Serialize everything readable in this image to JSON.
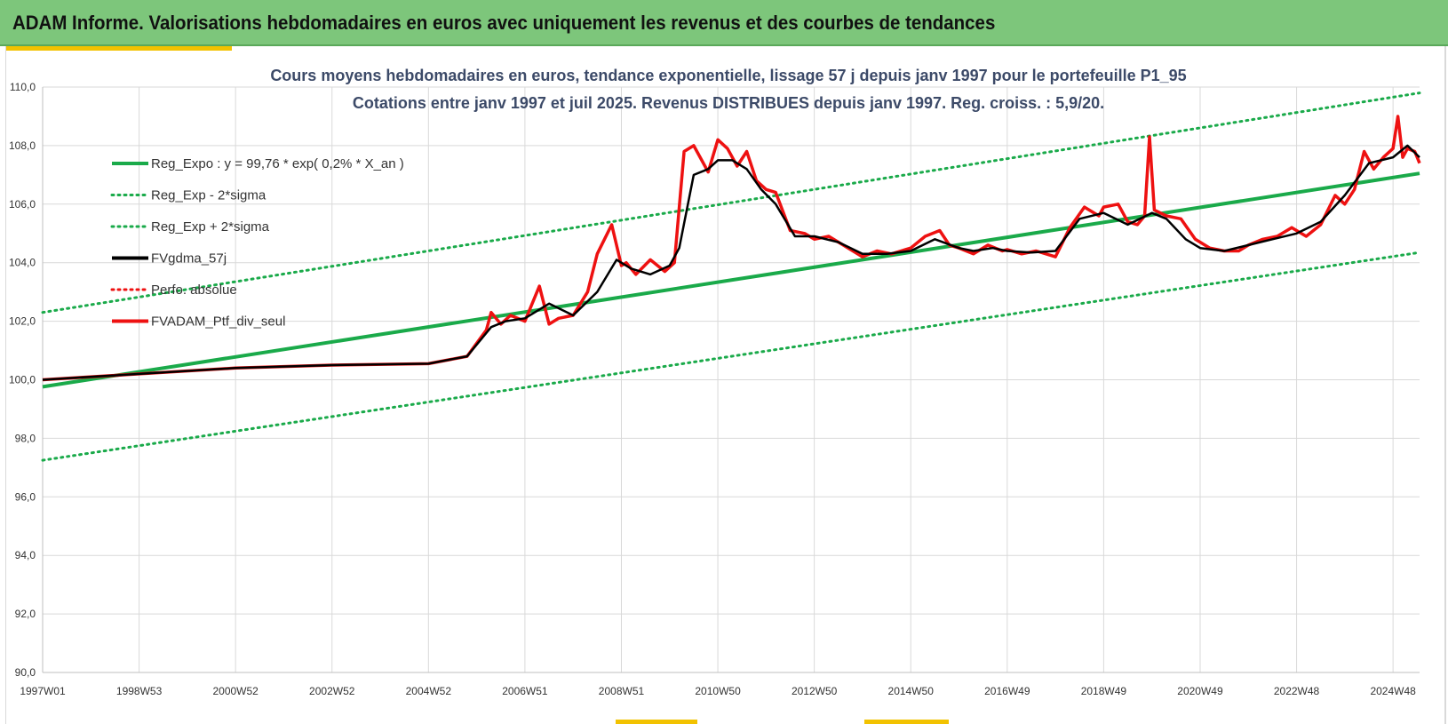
{
  "banner": {
    "title": "ADAM Informe. Valorisations hebdomadaires en euros avec uniquement les revenus et des courbes de tendances"
  },
  "colors": {
    "banner": "#7dc67b",
    "accent": "#f2c200",
    "reg_green": "#1aaa4a",
    "red": "#ee1111",
    "black": "#000000",
    "title_text": "#3c4a68"
  },
  "chart_data": {
    "type": "line",
    "title": "Cours moyens hebdomadaires  en euros, tendance exponentielle, lissage 57 j depuis janv 1997 pour le portefeuille P1_95",
    "subtitle": "Cotations  entre janv 1997 et juil 2025. Revenus DISTRIBUES depuis janv 1997. Reg. croiss. : 5,9/20.",
    "xlabel": "",
    "ylabel": "",
    "x_range": [
      1997.0,
      2025.55
    ],
    "ylim": [
      90,
      110
    ],
    "grid": true,
    "legend_position": "top-left (inside plot)",
    "x_ticks": [
      {
        "label": "1997W01",
        "year": 1997.0
      },
      {
        "label": "1998W53",
        "year": 1999.0
      },
      {
        "label": "2000W52",
        "year": 2001.0
      },
      {
        "label": "2002W52",
        "year": 2003.0
      },
      {
        "label": "2004W52",
        "year": 2005.0
      },
      {
        "label": "2006W51",
        "year": 2007.0
      },
      {
        "label": "2008W51",
        "year": 2009.0
      },
      {
        "label": "2010W50",
        "year": 2011.0
      },
      {
        "label": "2012W50",
        "year": 2013.0
      },
      {
        "label": "2014W50",
        "year": 2015.0
      },
      {
        "label": "2016W49",
        "year": 2017.0
      },
      {
        "label": "2018W49",
        "year": 2019.0
      },
      {
        "label": "2020W49",
        "year": 2021.0
      },
      {
        "label": "2022W48",
        "year": 2023.0
      },
      {
        "label": "2024W48",
        "year": 2025.0
      }
    ],
    "y_ticks": [
      "90,0",
      "92,0",
      "94,0",
      "96,0",
      "98,0",
      "100,0",
      "102,0",
      "104,0",
      "106,0",
      "108,0",
      "110,0"
    ],
    "y_tick_values": [
      90,
      92,
      94,
      96,
      98,
      100,
      102,
      104,
      106,
      108,
      110
    ],
    "series": [
      {
        "name": "Reg_Expo : y = 99,76 * exp( 0,2% *  X_an )",
        "style": "solid",
        "color": "#1aaa4a",
        "x": [
          1997.0,
          2025.55
        ],
        "y": [
          99.76,
          107.05
        ]
      },
      {
        "name": "Reg_Exp - 2*sigma",
        "style": "dotted",
        "color": "#1aaa4a",
        "x": [
          1997.0,
          2025.55
        ],
        "y": [
          97.25,
          104.35
        ]
      },
      {
        "name": "Reg_Exp + 2*sigma",
        "style": "dotted",
        "color": "#1aaa4a",
        "x": [
          1997.0,
          2025.55
        ],
        "y": [
          102.3,
          109.8
        ]
      },
      {
        "name": "FVgdma_57j",
        "style": "solid",
        "color": "#000000",
        "x": [
          1997.0,
          1999.0,
          2001.0,
          2003.0,
          2005.0,
          2005.8,
          2006.3,
          2006.6,
          2007.0,
          2007.5,
          2008.0,
          2008.5,
          2008.9,
          2009.2,
          2009.6,
          2010.0,
          2010.2,
          2010.5,
          2010.8,
          2011.0,
          2011.3,
          2011.6,
          2011.9,
          2012.2,
          2012.6,
          2013.0,
          2013.5,
          2014.0,
          2014.5,
          2015.0,
          2015.5,
          2016.0,
          2016.3,
          2016.7,
          2017.0,
          2017.5,
          2018.0,
          2018.5,
          2019.0,
          2019.5,
          2020.0,
          2020.3,
          2020.7,
          2021.0,
          2021.5,
          2022.0,
          2022.5,
          2023.0,
          2023.5,
          2024.0,
          2024.5,
          2025.0,
          2025.3,
          2025.55
        ],
        "y": [
          100.0,
          100.2,
          100.4,
          100.5,
          100.55,
          100.8,
          101.8,
          102.0,
          102.1,
          102.6,
          102.2,
          103.0,
          104.1,
          103.8,
          103.6,
          103.9,
          104.5,
          107.0,
          107.2,
          107.5,
          107.5,
          107.2,
          106.5,
          106.0,
          104.9,
          104.9,
          104.7,
          104.3,
          104.3,
          104.4,
          104.8,
          104.5,
          104.4,
          104.5,
          104.4,
          104.35,
          104.4,
          105.5,
          105.7,
          105.3,
          105.7,
          105.5,
          104.8,
          104.5,
          104.4,
          104.6,
          104.8,
          105.0,
          105.4,
          106.3,
          107.4,
          107.6,
          108.0,
          107.6
        ]
      },
      {
        "name": "Perfo. absolue",
        "style": "dotted",
        "color": "#ee1111",
        "x": [],
        "y": []
      },
      {
        "name": "FVADAM_Ptf_div_seul",
        "style": "solid",
        "color": "#ee1111",
        "x": [
          1997.0,
          1999.0,
          2001.0,
          2003.0,
          2005.0,
          2005.8,
          2006.2,
          2006.3,
          2006.5,
          2006.7,
          2007.0,
          2007.3,
          2007.5,
          2007.7,
          2008.0,
          2008.3,
          2008.5,
          2008.8,
          2009.0,
          2009.1,
          2009.3,
          2009.6,
          2009.9,
          2010.1,
          2010.3,
          2010.5,
          2010.8,
          2011.0,
          2011.2,
          2011.4,
          2011.6,
          2011.8,
          2012.0,
          2012.2,
          2012.5,
          2012.8,
          2013.0,
          2013.3,
          2013.6,
          2014.0,
          2014.3,
          2014.6,
          2015.0,
          2015.3,
          2015.6,
          2015.8,
          2016.0,
          2016.3,
          2016.6,
          2016.9,
          2017.0,
          2017.3,
          2017.6,
          2018.0,
          2018.3,
          2018.6,
          2018.9,
          2019.0,
          2019.3,
          2019.5,
          2019.7,
          2019.85,
          2019.95,
          2020.05,
          2020.3,
          2020.6,
          2020.9,
          2021.2,
          2021.5,
          2021.8,
          2022.0,
          2022.3,
          2022.6,
          2022.9,
          2023.2,
          2023.5,
          2023.8,
          2024.0,
          2024.2,
          2024.4,
          2024.6,
          2024.8,
          2025.0,
          2025.1,
          2025.2,
          2025.3,
          2025.45,
          2025.55
        ],
        "y": [
          100.0,
          100.2,
          100.4,
          100.5,
          100.55,
          100.8,
          101.7,
          102.3,
          101.9,
          102.2,
          102.0,
          103.2,
          101.9,
          102.1,
          102.2,
          103.0,
          104.3,
          105.3,
          103.9,
          104.0,
          103.6,
          104.1,
          103.7,
          104.0,
          107.8,
          108.0,
          107.1,
          108.2,
          107.9,
          107.3,
          107.8,
          106.8,
          106.5,
          106.4,
          105.1,
          105.0,
          104.8,
          104.9,
          104.6,
          104.2,
          104.4,
          104.3,
          104.5,
          104.9,
          105.1,
          104.6,
          104.5,
          104.3,
          104.6,
          104.4,
          104.45,
          104.3,
          104.4,
          104.2,
          105.2,
          105.9,
          105.6,
          105.9,
          106.0,
          105.4,
          105.3,
          105.6,
          108.3,
          105.8,
          105.6,
          105.5,
          104.8,
          104.5,
          104.4,
          104.4,
          104.6,
          104.8,
          104.9,
          105.2,
          104.9,
          105.3,
          106.3,
          106.0,
          106.5,
          107.8,
          107.2,
          107.6,
          107.9,
          109.0,
          107.6,
          107.9,
          107.8,
          107.4
        ]
      }
    ]
  }
}
